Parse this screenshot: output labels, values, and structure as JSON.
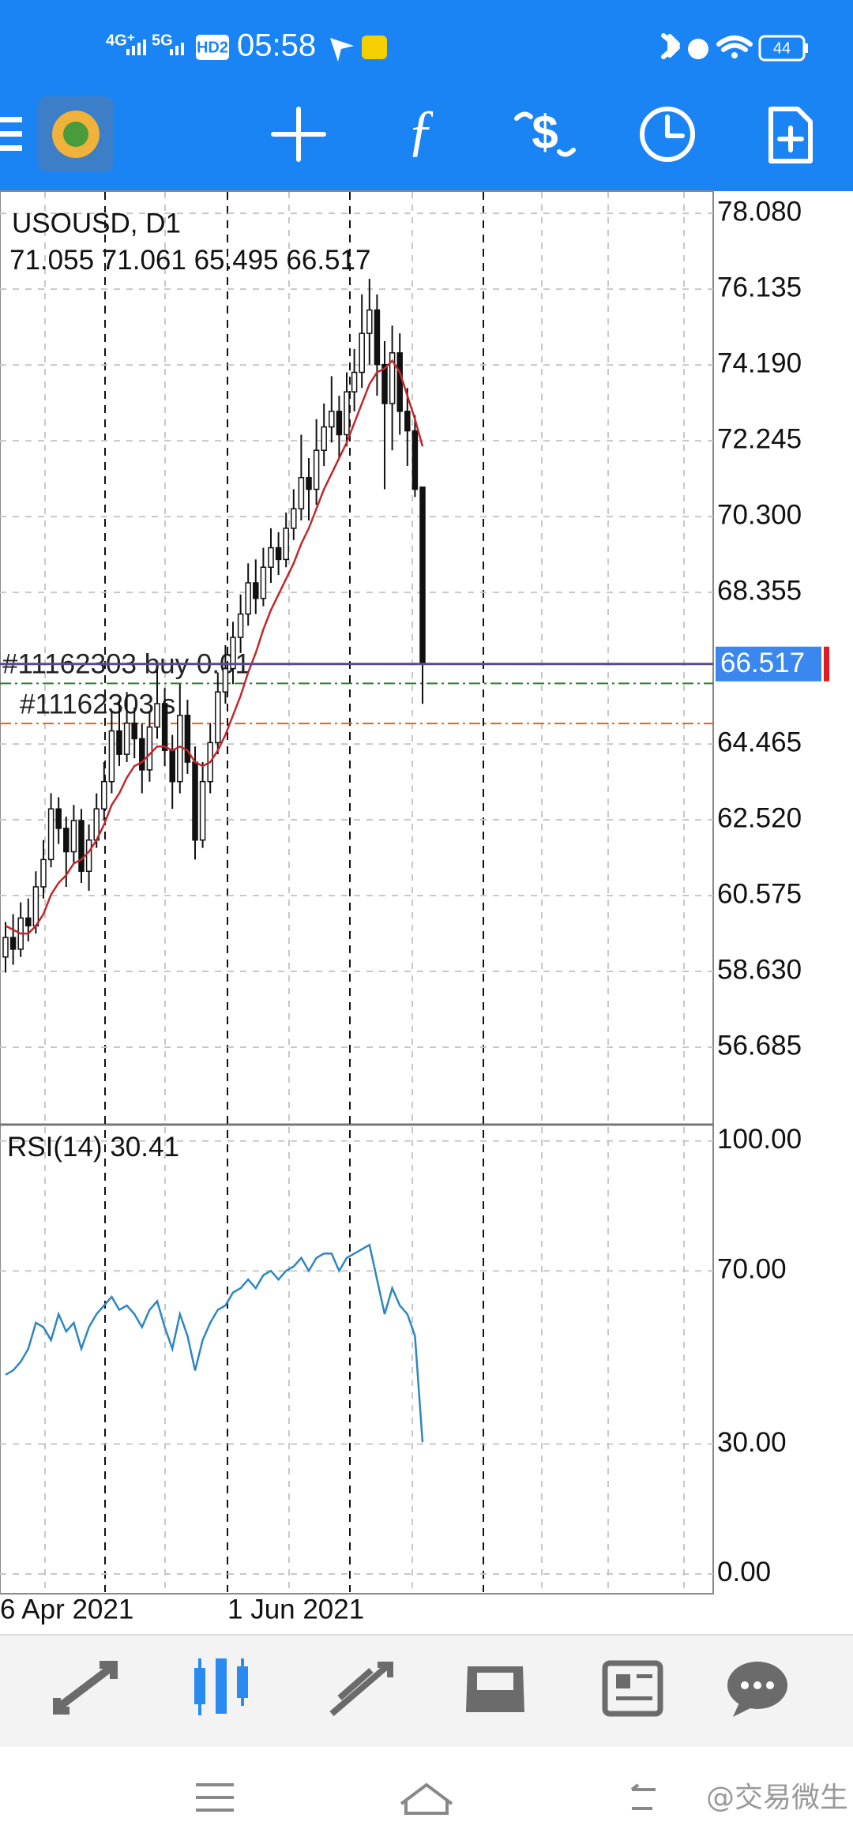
{
  "status_bar": {
    "network1": "4G⁺",
    "network2": "5G",
    "hd": "HD2",
    "time": "05:58",
    "battery": "44"
  },
  "chart": {
    "type": "candlestick",
    "symbol": "USOUSD, D1",
    "candles": [
      [
        59.0,
        59.9,
        58.6,
        59.5
      ],
      [
        59.5,
        60.1,
        58.8,
        59.2
      ],
      [
        59.2,
        60.4,
        59.0,
        60.0
      ],
      [
        60.0,
        60.5,
        59.4,
        59.8
      ],
      [
        59.8,
        61.2,
        59.6,
        60.8
      ],
      [
        60.8,
        62.0,
        60.5,
        61.5
      ],
      [
        61.5,
        63.2,
        61.3,
        62.8
      ],
      [
        62.8,
        63.1,
        61.9,
        62.3
      ],
      [
        62.3,
        62.6,
        60.8,
        61.7
      ],
      [
        61.7,
        62.9,
        61.4,
        62.5
      ],
      [
        62.5,
        62.8,
        60.9,
        61.2
      ],
      [
        61.2,
        62.4,
        60.7,
        62.0
      ],
      [
        62.0,
        63.2,
        61.8,
        62.8
      ],
      [
        62.8,
        64.0,
        62.5,
        63.5
      ],
      [
        63.5,
        65.3,
        63.2,
        64.8
      ],
      [
        64.8,
        65.6,
        63.9,
        64.2
      ],
      [
        64.2,
        65.8,
        64.0,
        65.0
      ],
      [
        65.0,
        65.4,
        64.1,
        64.6
      ],
      [
        64.6,
        65.0,
        63.2,
        63.8
      ],
      [
        63.8,
        65.3,
        63.5,
        64.9
      ],
      [
        64.9,
        66.4,
        64.6,
        65.5
      ],
      [
        65.5,
        65.9,
        63.9,
        64.3
      ],
      [
        64.3,
        64.7,
        62.8,
        63.5
      ],
      [
        63.5,
        66.0,
        63.2,
        65.2
      ],
      [
        65.2,
        65.6,
        63.7,
        64.0
      ],
      [
        64.0,
        64.4,
        61.5,
        62.0
      ],
      [
        62.0,
        64.0,
        61.8,
        63.5
      ],
      [
        63.5,
        65.0,
        63.2,
        64.5
      ],
      [
        64.5,
        66.3,
        64.2,
        65.8
      ],
      [
        65.8,
        67.0,
        65.5,
        66.4
      ],
      [
        66.4,
        67.6,
        66.0,
        67.2
      ],
      [
        67.2,
        68.3,
        66.8,
        67.8
      ],
      [
        67.8,
        69.1,
        67.5,
        68.6
      ],
      [
        68.6,
        69.2,
        67.8,
        68.2
      ],
      [
        68.2,
        69.5,
        68.0,
        69.0
      ],
      [
        69.0,
        70.0,
        68.6,
        69.5
      ],
      [
        69.5,
        69.9,
        68.8,
        69.2
      ],
      [
        69.2,
        70.4,
        69.0,
        70.0
      ],
      [
        70.0,
        71.0,
        69.7,
        70.5
      ],
      [
        70.5,
        72.4,
        70.2,
        71.3
      ],
      [
        71.3,
        71.8,
        70.2,
        71.0
      ],
      [
        71.0,
        72.8,
        70.6,
        72.0
      ],
      [
        72.0,
        73.2,
        71.6,
        72.6
      ],
      [
        72.6,
        73.9,
        72.2,
        73.0
      ],
      [
        73.0,
        73.4,
        71.8,
        72.4
      ],
      [
        72.4,
        74.0,
        72.1,
        73.5
      ],
      [
        73.5,
        74.6,
        73.0,
        74.0
      ],
      [
        74.0,
        76.0,
        73.6,
        75.0
      ],
      [
        75.0,
        76.4,
        74.2,
        75.6
      ],
      [
        75.6,
        76.0,
        73.4,
        74.2
      ],
      [
        74.2,
        74.8,
        71.0,
        73.2
      ],
      [
        73.2,
        75.2,
        72.0,
        74.5
      ],
      [
        74.5,
        75.0,
        72.4,
        73.0
      ],
      [
        73.0,
        73.6,
        71.6,
        72.5
      ],
      [
        72.5,
        72.9,
        70.8,
        71.0
      ],
      [
        71.055,
        71.061,
        65.495,
        66.517
      ]
    ],
    "ma_color": "#c0282d",
    "ma": [
      59.8,
      59.7,
      59.6,
      59.6,
      59.8,
      60.1,
      60.6,
      60.9,
      61.1,
      61.4,
      61.5,
      61.7,
      62.0,
      62.4,
      62.9,
      63.2,
      63.6,
      63.9,
      64.0,
      64.2,
      64.4,
      64.4,
      64.3,
      64.4,
      64.3,
      64.0,
      63.9,
      64.0,
      64.3,
      64.7,
      65.2,
      65.7,
      66.3,
      66.8,
      67.4,
      67.9,
      68.3,
      68.7,
      69.1,
      69.6,
      70.0,
      70.5,
      71.0,
      71.4,
      71.8,
      72.2,
      72.7,
      73.2,
      73.7,
      74.0,
      74.1,
      74.3,
      74.0,
      73.4,
      72.8,
      72.1
    ],
    "ylim": [
      54.72,
      78.63
    ],
    "yticks": [
      {
        "value": 78.08,
        "label": "78.080"
      },
      76.135,
      {
        "value": 74.19,
        "label": "74.190"
      },
      72.245,
      {
        "value": 70.3,
        "label": "70.300"
      },
      68.355,
      64.465,
      {
        "value": 62.52,
        "label": "62.520"
      },
      60.575,
      {
        "value": 58.63,
        "label": "58.630"
      },
      56.685
    ],
    "grid": true,
    "bid": 66.517,
    "orders": [
      {
        "label": "#11162303 buy 0.01",
        "price": 66.02,
        "color": "#2e7d32"
      },
      {
        "label": "#11162303 s",
        "price": 64.99,
        "color": "#e8621a"
      }
    ],
    "date_labels": [
      "6 Apr 2021",
      "1 Jun 2021"
    ]
  },
  "rsi": {
    "type": "line",
    "label": "RSI(14)",
    "color": "#2e86c1",
    "values": [
      46,
      47,
      49,
      52,
      58,
      57,
      54,
      60,
      56,
      58,
      52,
      57,
      60,
      62,
      64,
      61,
      62,
      60,
      57,
      61,
      63,
      57,
      52,
      60,
      55,
      47,
      54,
      58,
      61,
      62,
      65,
      66,
      68,
      66,
      69,
      70,
      68,
      70,
      71,
      73,
      70,
      73,
      74,
      74,
      70,
      73,
      74,
      75,
      76,
      68,
      60,
      66,
      62,
      60,
      55,
      30.41
    ],
    "ylim": [
      -4.2,
      103.6
    ],
    "yticks": [
      {
        "value": 100,
        "label": "100.00"
      },
      {
        "value": 70,
        "label": "70.00"
      },
      {
        "value": 30,
        "label": "30.00"
      },
      {
        "value": 0,
        "label": "0.00"
      }
    ]
  },
  "watermark": "@交易微生"
}
